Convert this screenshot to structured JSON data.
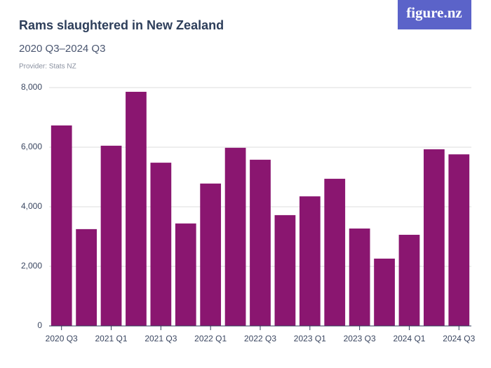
{
  "logo": "figure.nz",
  "chart_data": {
    "type": "bar",
    "title": "Rams slaughtered in New Zealand",
    "subtitle": "2020 Q3–2024 Q3",
    "provider": "Provider: Stats NZ",
    "categories": [
      "2020 Q3",
      null,
      "2021 Q1",
      null,
      "2021 Q3",
      null,
      "2022 Q1",
      null,
      "2022 Q3",
      null,
      "2023 Q1",
      null,
      "2023 Q3",
      null,
      "2024 Q1",
      null,
      "2024 Q3"
    ],
    "values": [
      6730,
      3250,
      6050,
      7860,
      5480,
      3440,
      4780,
      5980,
      5580,
      3720,
      4350,
      4940,
      3270,
      2260,
      3060,
      5930,
      5760
    ],
    "color": "#8a1670",
    "ylim": [
      0,
      8000
    ],
    "yticks": [
      0,
      {
        "value": 2000,
        "label": "2,000"
      },
      {
        "value": 4000,
        "label": "4,000"
      },
      {
        "value": 6000,
        "label": "6,000"
      },
      {
        "value": 8000,
        "label": "8,000"
      }
    ],
    "grid": true
  }
}
